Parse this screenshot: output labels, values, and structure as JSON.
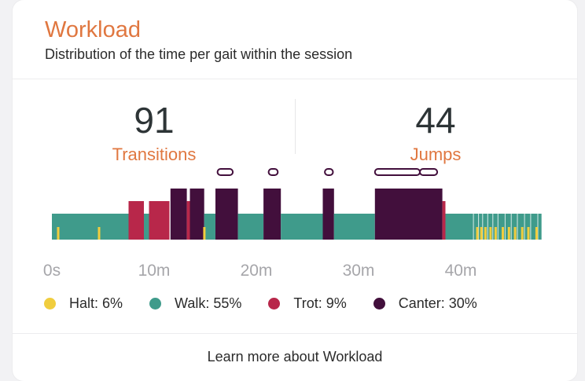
{
  "card": {
    "title": "Workload",
    "subtitle": "Distribution of the time per gait within the session",
    "footer_link": "Learn more about Workload"
  },
  "stats": [
    {
      "value": "91",
      "label": "Transitions"
    },
    {
      "value": "44",
      "label": "Jumps"
    }
  ],
  "legend": [
    {
      "label": "Halt: 6%",
      "color": "#f0cd3e"
    },
    {
      "label": "Walk: 55%",
      "color": "#3f9b8b"
    },
    {
      "label": "Trot: 9%",
      "color": "#b8274a"
    },
    {
      "label": "Canter: 30%",
      "color": "#420f3c"
    }
  ],
  "chart_data": {
    "type": "timeline",
    "x_unit": "minutes",
    "xlim": [
      0,
      48
    ],
    "tick_labels": [
      "0s",
      "10m",
      "20m",
      "30m",
      "40m"
    ],
    "tick_values": [
      0,
      10,
      20,
      30,
      40
    ],
    "segments": [
      {
        "gait": "walk",
        "start": 0.0,
        "end": 7.5
      },
      {
        "gait": "trot",
        "start": 7.5,
        "end": 9.0
      },
      {
        "gait": "walk",
        "start": 9.0,
        "end": 9.5
      },
      {
        "gait": "trot",
        "start": 9.5,
        "end": 11.5
      },
      {
        "gait": "canter",
        "start": 11.6,
        "end": 13.2
      },
      {
        "gait": "trot",
        "start": 13.2,
        "end": 13.5
      },
      {
        "gait": "canter",
        "start": 13.5,
        "end": 14.9
      },
      {
        "gait": "walk",
        "start": 14.9,
        "end": 16.0
      },
      {
        "gait": "canter",
        "start": 16.0,
        "end": 18.2
      },
      {
        "gait": "walk",
        "start": 18.2,
        "end": 20.7
      },
      {
        "gait": "canter",
        "start": 20.7,
        "end": 22.4
      },
      {
        "gait": "walk",
        "start": 22.4,
        "end": 26.5
      },
      {
        "gait": "canter",
        "start": 26.5,
        "end": 27.6
      },
      {
        "gait": "walk",
        "start": 27.6,
        "end": 31.6
      },
      {
        "gait": "canter",
        "start": 31.6,
        "end": 38.2
      },
      {
        "gait": "trot",
        "start": 38.2,
        "end": 38.5
      },
      {
        "gait": "walk",
        "start": 38.5,
        "end": 47.9
      }
    ],
    "halts": [
      0.5,
      4.5,
      14.8,
      41.5,
      41.9,
      42.3,
      42.8,
      43.3,
      44.0,
      44.6,
      45.2,
      45.9,
      46.5,
      47.3
    ],
    "jump_markers": [
      {
        "start": 16.2,
        "end": 17.7
      },
      {
        "start": 21.2,
        "end": 22.1
      },
      {
        "start": 26.7,
        "end": 27.5
      },
      {
        "start": 31.6,
        "end": 36.0
      },
      {
        "start": 36.0,
        "end": 37.7
      }
    ]
  }
}
